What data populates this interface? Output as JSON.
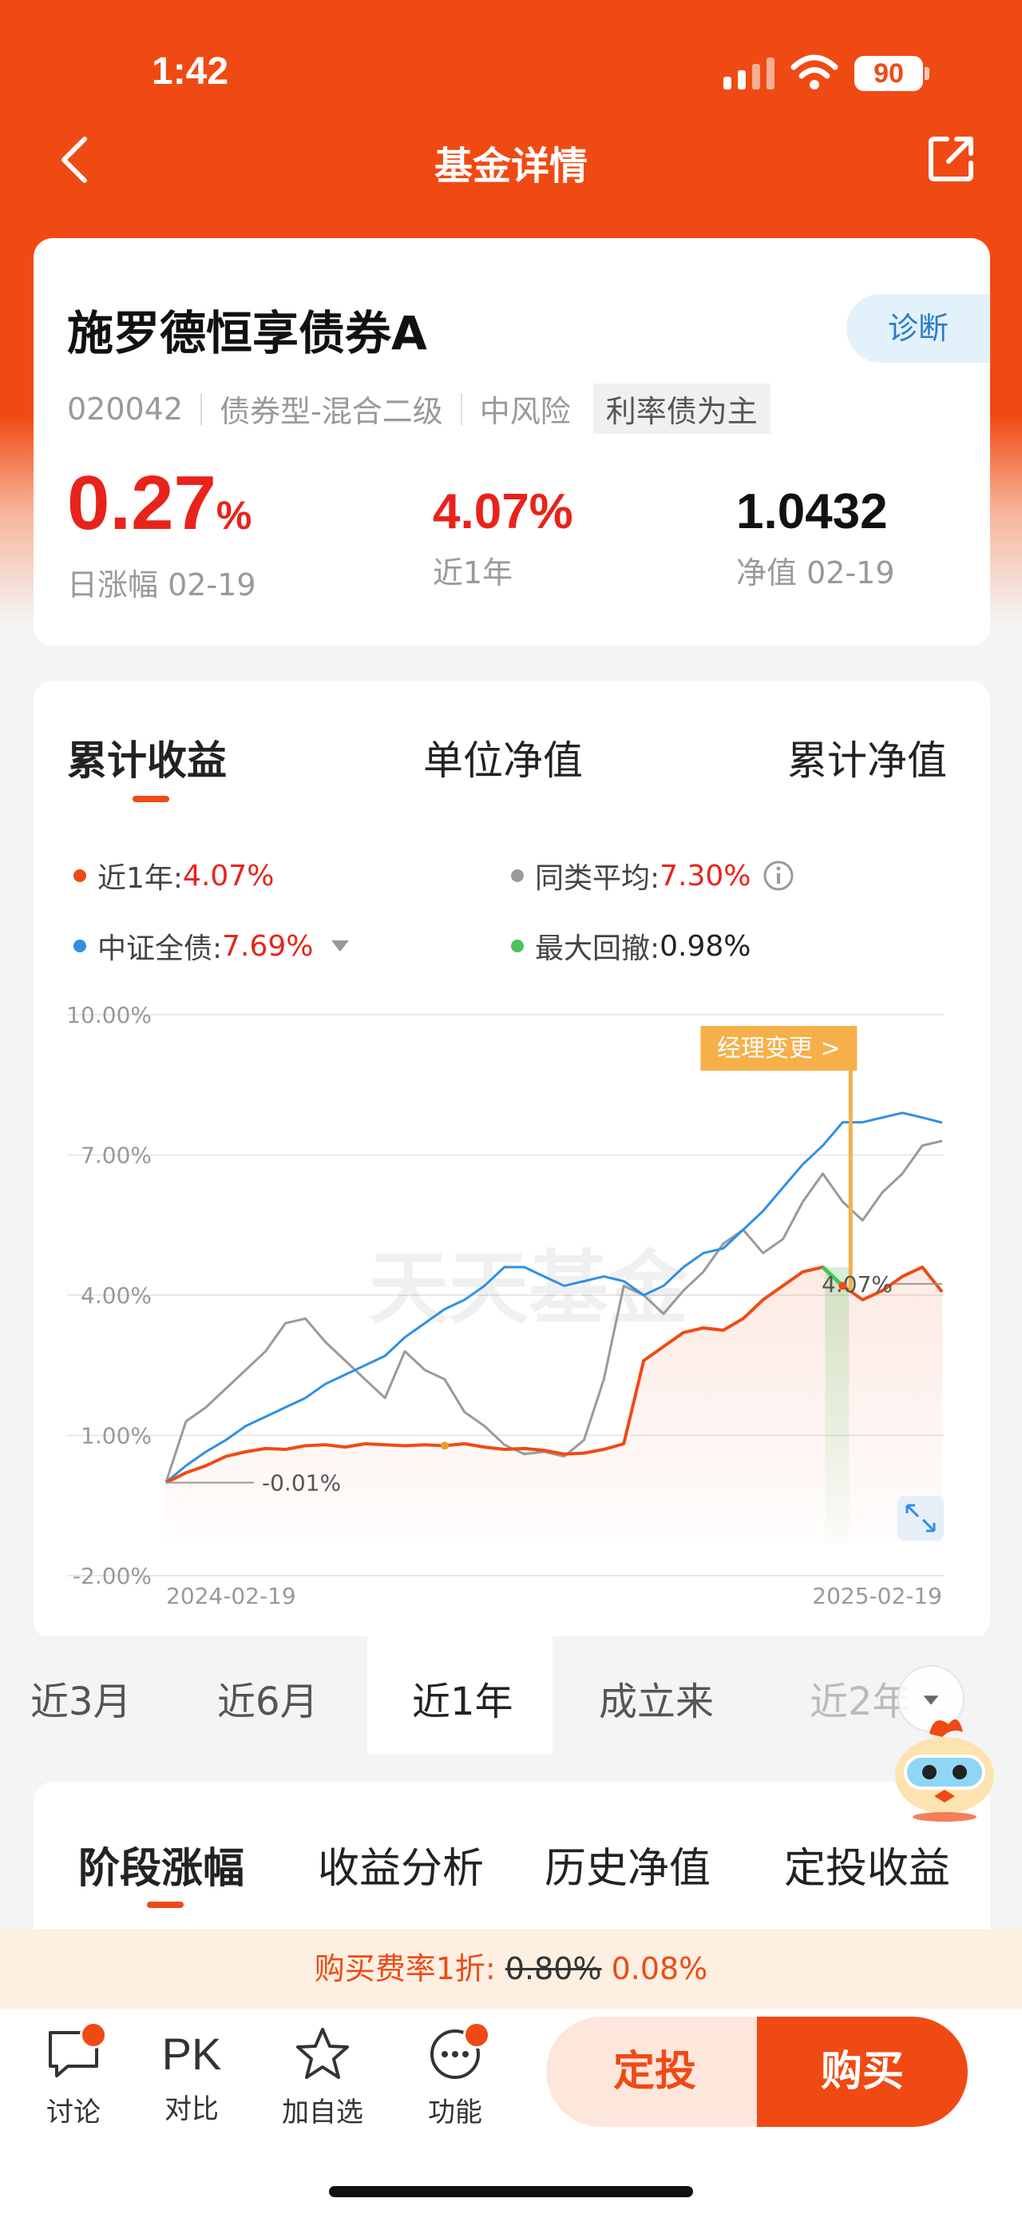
{
  "status": {
    "time": "1:42",
    "battery": "90"
  },
  "nav": {
    "title": "基金详情"
  },
  "fund": {
    "name": "施罗德恒享债券A",
    "diagnose_label": "诊断",
    "code": "020042",
    "type": "债券型-混合二级",
    "risk": "中风险",
    "tag": "利率债为主",
    "daily_change_value": "0.27",
    "daily_change_unit": "%",
    "daily_change_label": "日涨幅 02-19",
    "year_return_value": "4.07%",
    "year_return_label": "近1年",
    "nav_value": "1.0432",
    "nav_label": "净值 02-19"
  },
  "chart_tabs": [
    "累计收益",
    "单位净值",
    "累计净值"
  ],
  "legend": [
    {
      "label": "近1年: ",
      "value": "4.07%",
      "color": "#f04a14"
    },
    {
      "label": "同类平均: ",
      "value": "7.30%",
      "color": "#9a9a9a"
    },
    {
      "label": "中证全债: ",
      "value": "7.69%",
      "color": "#2f8fe6"
    },
    {
      "label": "最大回撤: ",
      "value": "0.98%",
      "color": "#4cc25a"
    }
  ],
  "chart_data": {
    "type": "line",
    "x_start": "2024-02-19",
    "x_end": "2025-02-19",
    "yticks": [
      "10.00%",
      "7.00%",
      "4.00%",
      "1.00%",
      "-2.00%"
    ],
    "ylim": [
      -2,
      10
    ],
    "watermark": "天天基金",
    "manager_change_label": "经理变更 >",
    "start_label": "-0.01%",
    "end_label": "4.07%",
    "series": [
      {
        "name": "近1年",
        "color": "#f04a14",
        "values": [
          -0.01,
          0.2,
          0.35,
          0.55,
          0.65,
          0.72,
          0.7,
          0.78,
          0.8,
          0.75,
          0.82,
          0.8,
          0.78,
          0.8,
          0.78,
          0.82,
          0.75,
          0.7,
          0.72,
          0.68,
          0.6,
          0.62,
          0.7,
          0.82,
          2.6,
          2.9,
          3.2,
          3.3,
          3.25,
          3.5,
          3.9,
          4.2,
          4.5,
          4.6,
          4.2,
          3.9,
          4.1,
          4.4,
          4.6,
          4.07
        ]
      },
      {
        "name": "同类平均",
        "color": "#9a9a9a",
        "values": [
          0,
          1.3,
          1.6,
          2.0,
          2.4,
          2.8,
          3.4,
          3.5,
          3.0,
          2.6,
          2.2,
          1.8,
          2.8,
          2.4,
          2.2,
          1.5,
          1.2,
          0.8,
          0.6,
          0.65,
          0.55,
          0.9,
          2.2,
          4.2,
          4.0,
          3.6,
          4.1,
          4.5,
          5.1,
          5.4,
          4.9,
          5.2,
          6.0,
          6.6,
          6.0,
          5.6,
          6.2,
          6.6,
          7.2,
          7.3
        ]
      },
      {
        "name": "中证全债",
        "color": "#2f8fe6",
        "values": [
          0,
          0.35,
          0.65,
          0.9,
          1.2,
          1.4,
          1.6,
          1.8,
          2.1,
          2.3,
          2.5,
          2.7,
          3.1,
          3.4,
          3.7,
          3.9,
          4.2,
          4.6,
          4.6,
          4.4,
          4.2,
          4.3,
          4.4,
          4.3,
          4.0,
          4.2,
          4.6,
          4.9,
          5.0,
          5.4,
          5.8,
          6.3,
          6.8,
          7.2,
          7.7,
          7.7,
          7.8,
          7.9,
          7.8,
          7.69
        ]
      }
    ]
  },
  "periods": [
    "近3月",
    "近6月",
    "近1年",
    "成立来",
    "近2年"
  ],
  "section_tabs": [
    "阶段涨幅",
    "收益分析",
    "历史净值",
    "定投收益"
  ],
  "fee": {
    "prefix": "购买费率1折: ",
    "old": "0.80%",
    "new": " 0.08%"
  },
  "bottom": {
    "discuss": "讨论",
    "pk_text": "PK",
    "pk": "对比",
    "watch": "加自选",
    "func": "功能",
    "ding": "定投",
    "buy": "购买"
  }
}
